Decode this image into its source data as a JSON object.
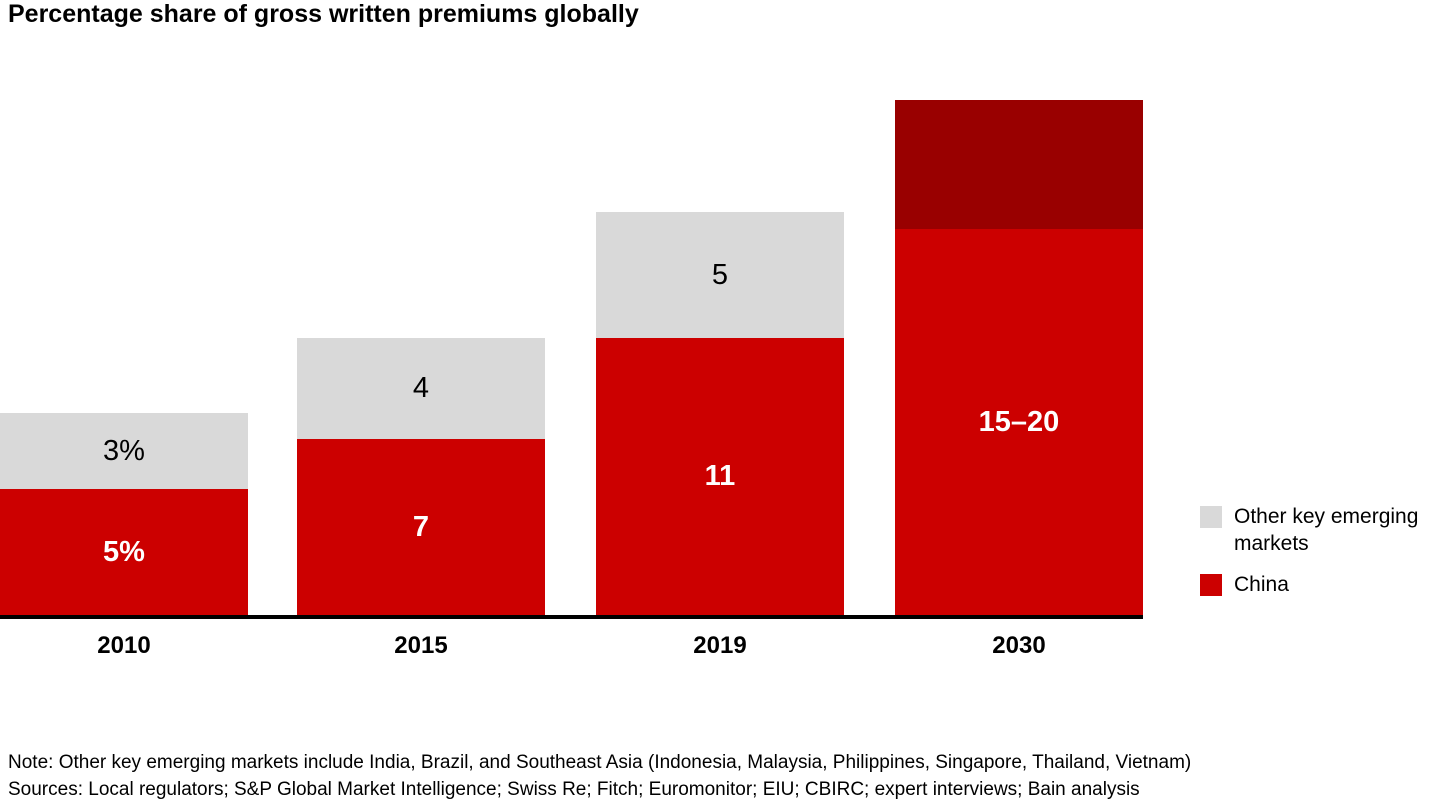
{
  "title": "Percentage share of gross written premiums globally",
  "chart_data": {
    "type": "bar",
    "stacked": true,
    "grid": false,
    "legend_position": "right",
    "categories": [
      "2010",
      "2015",
      "2019",
      "2030"
    ],
    "series": [
      {
        "name": "China",
        "values": [
          5,
          7,
          11,
          "15-20 (range)"
        ]
      },
      {
        "name": "Other key emerging markets",
        "values": [
          3,
          4,
          5,
          5
        ]
      }
    ],
    "bars": [
      {
        "category": "2010",
        "segments": [
          {
            "series": "China",
            "value": 5,
            "label": "5%",
            "color": "#cc0000",
            "label_color": "#ffffff",
            "label_bold": true
          },
          {
            "series": "Other key emerging markets",
            "value": 3,
            "label": "3%",
            "color": "#d9d9d9",
            "label_color": "#000000",
            "label_bold": false
          }
        ]
      },
      {
        "category": "2015",
        "segments": [
          {
            "series": "China",
            "value": 7,
            "label": "7",
            "color": "#cc0000",
            "label_color": "#ffffff",
            "label_bold": true
          },
          {
            "series": "Other key emerging markets",
            "value": 4,
            "label": "4",
            "color": "#d9d9d9",
            "label_color": "#000000",
            "label_bold": false
          }
        ]
      },
      {
        "category": "2019",
        "segments": [
          {
            "series": "China",
            "value": 11,
            "label": "11",
            "color": "#cc0000",
            "label_color": "#ffffff",
            "label_bold": true
          },
          {
            "series": "Other key emerging markets",
            "value": 5,
            "label": "5",
            "color": "#d9d9d9",
            "label_color": "#000000",
            "label_bold": false
          }
        ]
      },
      {
        "category": "2030",
        "segments": [
          {
            "series": "China",
            "value": 15.3,
            "label": "15–20",
            "color": "#cc0000",
            "label_color": "#ffffff",
            "label_bold": true
          },
          {
            "series": "Other key emerging markets",
            "value": 5.1,
            "label": "",
            "color": "#990000",
            "label_color": "#ffffff",
            "label_bold": false
          }
        ]
      }
    ]
  },
  "legend": {
    "items": [
      {
        "label": "Other key emerging markets",
        "color": "#d9d9d9"
      },
      {
        "label": "China",
        "color": "#cc0000"
      }
    ]
  },
  "note": "Note: Other key emerging markets include India, Brazil, and Southeast Asia (Indonesia, Malaysia, Philippines, Singapore, Thailand, Vietnam)",
  "sources": "Sources: Local regulators; S&P Global Market Intelligence; Swiss Re; Fitch; Euromonitor; EIU; CBIRC; expert interviews; Bain analysis"
}
